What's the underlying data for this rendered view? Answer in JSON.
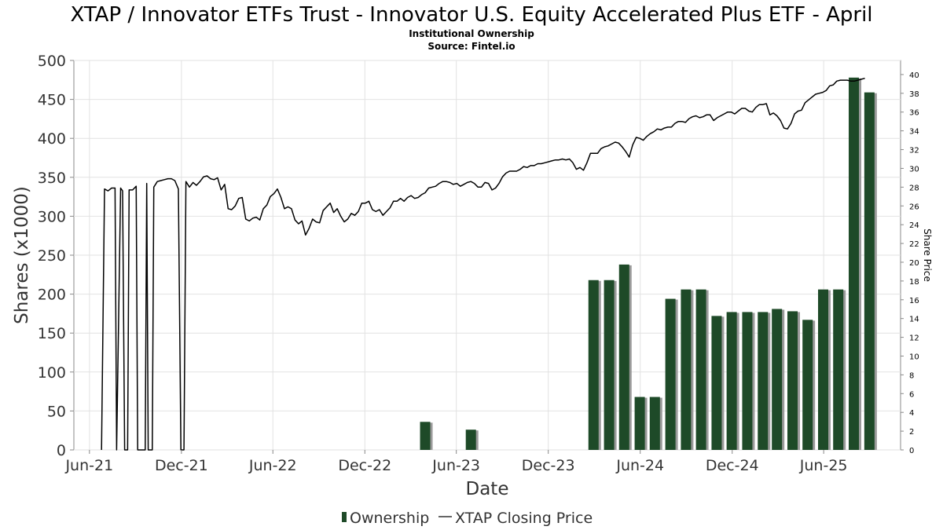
{
  "chart_data": {
    "type": "bar",
    "title": "XTAP / Innovator ETFs Trust - Innovator U.S. Equity Accelerated Plus ETF - April",
    "subtitle": "Institutional Ownership",
    "source": "Source: Fintel.io",
    "xlabel": "Date",
    "ylabel": "Shares (x1000)",
    "y2label": "Share Price",
    "ylim": [
      0,
      500
    ],
    "y2lim": [
      0,
      41.5
    ],
    "yticks": [
      "0",
      "50",
      "100",
      "150",
      "200",
      "250",
      "300",
      "350",
      "400",
      "450",
      "500"
    ],
    "y2ticks": [
      "0",
      "2",
      "4",
      "6",
      "8",
      "10",
      "12",
      "14",
      "16",
      "18",
      "20",
      "22",
      "24",
      "26",
      "28",
      "30",
      "32",
      "34",
      "36",
      "38",
      "40"
    ],
    "xticks": [
      {
        "label": "Jun-21",
        "date": "2021-06-01"
      },
      {
        "label": "Dec-21",
        "date": "2021-12-01"
      },
      {
        "label": "Jun-22",
        "date": "2022-06-01"
      },
      {
        "label": "Dec-22",
        "date": "2022-12-01"
      },
      {
        "label": "Jun-23",
        "date": "2023-06-01"
      },
      {
        "label": "Dec-23",
        "date": "2023-12-01"
      },
      {
        "label": "Jun-24",
        "date": "2024-06-01"
      },
      {
        "label": "Dec-24",
        "date": "2024-12-01"
      },
      {
        "label": "Jun-25",
        "date": "2025-06-01"
      }
    ],
    "xlim": [
      "2021-05-01",
      "2025-11-01"
    ],
    "grid": true,
    "legend_position": "bottom",
    "series": [
      {
        "name": "Ownership",
        "kind": "bar",
        "color": "#1e4a28",
        "points": [
          {
            "date": "2023-03-31",
            "value": 36
          },
          {
            "date": "2023-06-30",
            "value": 26
          },
          {
            "date": "2024-02-29",
            "value": 218
          },
          {
            "date": "2024-03-31",
            "value": 218
          },
          {
            "date": "2024-04-30",
            "value": 238
          },
          {
            "date": "2024-05-31",
            "value": 68
          },
          {
            "date": "2024-06-30",
            "value": 68
          },
          {
            "date": "2024-07-31",
            "value": 194
          },
          {
            "date": "2024-08-31",
            "value": 206
          },
          {
            "date": "2024-09-30",
            "value": 206
          },
          {
            "date": "2024-10-31",
            "value": 172
          },
          {
            "date": "2024-11-30",
            "value": 177
          },
          {
            "date": "2024-12-31",
            "value": 177
          },
          {
            "date": "2025-01-31",
            "value": 177
          },
          {
            "date": "2025-02-28",
            "value": 181
          },
          {
            "date": "2025-03-31",
            "value": 178
          },
          {
            "date": "2025-04-30",
            "value": 167
          },
          {
            "date": "2025-05-31",
            "value": 206
          },
          {
            "date": "2025-06-30",
            "value": 206
          },
          {
            "date": "2025-07-31",
            "value": 478
          },
          {
            "date": "2025-08-31",
            "value": 459
          }
        ]
      },
      {
        "name": "XTAP Closing Price",
        "kind": "line",
        "color": "#000000",
        "points": [
          [
            "2021-06-25",
            0
          ],
          [
            "2021-07-01",
            27.8
          ],
          [
            "2021-07-08",
            27.6
          ],
          [
            "2021-07-15",
            27.9
          ],
          [
            "2021-07-22",
            27.9
          ],
          [
            "2021-07-25",
            0
          ],
          [
            "2021-08-02",
            27.9
          ],
          [
            "2021-08-06",
            27.6
          ],
          [
            "2021-08-10",
            0
          ],
          [
            "2021-08-16",
            0
          ],
          [
            "2021-08-19",
            27.7
          ],
          [
            "2021-08-26",
            27.7
          ],
          [
            "2021-09-02",
            28.1
          ],
          [
            "2021-09-05",
            0
          ],
          [
            "2021-09-20",
            0
          ],
          [
            "2021-09-23",
            28.4
          ],
          [
            "2021-09-26",
            0
          ],
          [
            "2021-10-04",
            0
          ],
          [
            "2021-10-07",
            28.0
          ],
          [
            "2021-10-14",
            28.6
          ],
          [
            "2021-10-21",
            28.7
          ],
          [
            "2021-10-28",
            28.8
          ],
          [
            "2021-11-04",
            28.9
          ],
          [
            "2021-11-11",
            28.9
          ],
          [
            "2021-11-18",
            28.7
          ],
          [
            "2021-11-25",
            27.8
          ],
          [
            "2021-11-30",
            0
          ],
          [
            "2021-12-06",
            0
          ],
          [
            "2021-12-10",
            28.6
          ],
          [
            "2021-12-17",
            28.0
          ],
          [
            "2021-12-24",
            28.5
          ],
          [
            "2021-12-31",
            28.2
          ],
          [
            "2022-01-07",
            28.6
          ],
          [
            "2022-01-14",
            29.1
          ],
          [
            "2022-01-21",
            29.2
          ],
          [
            "2022-01-28",
            28.9
          ],
          [
            "2022-02-04",
            28.8
          ],
          [
            "2022-02-11",
            29.0
          ],
          [
            "2022-02-18",
            27.7
          ],
          [
            "2022-02-25",
            28.3
          ],
          [
            "2022-03-04",
            25.7
          ],
          [
            "2022-03-11",
            25.6
          ],
          [
            "2022-03-18",
            26.0
          ],
          [
            "2022-03-25",
            26.8
          ],
          [
            "2022-04-01",
            26.9
          ],
          [
            "2022-04-08",
            24.6
          ],
          [
            "2022-04-15",
            24.4
          ],
          [
            "2022-04-22",
            24.7
          ],
          [
            "2022-04-29",
            24.8
          ],
          [
            "2022-05-06",
            24.5
          ],
          [
            "2022-05-13",
            25.7
          ],
          [
            "2022-05-20",
            26.1
          ],
          [
            "2022-05-27",
            27.0
          ],
          [
            "2022-06-03",
            27.3
          ],
          [
            "2022-06-10",
            27.8
          ],
          [
            "2022-06-17",
            26.9
          ],
          [
            "2022-06-24",
            25.7
          ],
          [
            "2022-07-01",
            25.9
          ],
          [
            "2022-07-08",
            25.7
          ],
          [
            "2022-07-15",
            24.5
          ],
          [
            "2022-07-22",
            24.1
          ],
          [
            "2022-07-29",
            24.4
          ],
          [
            "2022-08-05",
            22.9
          ],
          [
            "2022-08-12",
            23.6
          ],
          [
            "2022-08-19",
            24.6
          ],
          [
            "2022-08-26",
            24.3
          ],
          [
            "2022-09-02",
            24.2
          ],
          [
            "2022-09-09",
            25.5
          ],
          [
            "2022-09-16",
            25.9
          ],
          [
            "2022-09-23",
            26.3
          ],
          [
            "2022-09-30",
            25.3
          ],
          [
            "2022-10-07",
            25.7
          ],
          [
            "2022-10-14",
            24.9
          ],
          [
            "2022-10-21",
            24.3
          ],
          [
            "2022-10-28",
            24.6
          ],
          [
            "2022-11-04",
            25.2
          ],
          [
            "2022-11-11",
            25.0
          ],
          [
            "2022-11-18",
            25.4
          ],
          [
            "2022-11-25",
            26.3
          ],
          [
            "2022-12-02",
            26.3
          ],
          [
            "2022-12-09",
            26.5
          ],
          [
            "2022-12-16",
            25.6
          ],
          [
            "2022-12-23",
            25.4
          ],
          [
            "2022-12-30",
            25.6
          ],
          [
            "2023-01-06",
            25.0
          ],
          [
            "2023-01-13",
            25.4
          ],
          [
            "2023-01-20",
            25.8
          ],
          [
            "2023-01-27",
            26.5
          ],
          [
            "2023-02-03",
            26.5
          ],
          [
            "2023-02-10",
            26.8
          ],
          [
            "2023-02-17",
            26.5
          ],
          [
            "2023-02-24",
            26.9
          ],
          [
            "2023-03-03",
            27.1
          ],
          [
            "2023-03-10",
            26.8
          ],
          [
            "2023-03-17",
            26.9
          ],
          [
            "2023-03-24",
            27.2
          ],
          [
            "2023-03-31",
            27.4
          ],
          [
            "2023-04-07",
            27.9
          ],
          [
            "2023-04-14",
            28.0
          ],
          [
            "2023-04-21",
            28.1
          ],
          [
            "2023-04-28",
            28.4
          ],
          [
            "2023-05-05",
            28.6
          ],
          [
            "2023-05-12",
            28.6
          ],
          [
            "2023-05-19",
            28.5
          ],
          [
            "2023-05-26",
            28.3
          ],
          [
            "2023-06-02",
            28.4
          ],
          [
            "2023-06-09",
            28.1
          ],
          [
            "2023-06-16",
            28.3
          ],
          [
            "2023-06-23",
            28.5
          ],
          [
            "2023-06-30",
            28.6
          ],
          [
            "2023-07-07",
            28.4
          ],
          [
            "2023-07-14",
            28.0
          ],
          [
            "2023-07-21",
            28.0
          ],
          [
            "2023-07-28",
            28.5
          ],
          [
            "2023-08-04",
            28.4
          ],
          [
            "2023-08-11",
            27.7
          ],
          [
            "2023-08-18",
            27.9
          ],
          [
            "2023-08-25",
            28.4
          ],
          [
            "2023-09-01",
            29.1
          ],
          [
            "2023-09-08",
            29.5
          ],
          [
            "2023-09-15",
            29.7
          ],
          [
            "2023-09-22",
            29.7
          ],
          [
            "2023-09-29",
            29.7
          ],
          [
            "2023-10-06",
            29.9
          ],
          [
            "2023-10-13",
            30.2
          ],
          [
            "2023-10-20",
            30.1
          ],
          [
            "2023-10-27",
            30.3
          ],
          [
            "2023-11-03",
            30.3
          ],
          [
            "2023-11-10",
            30.5
          ],
          [
            "2023-11-17",
            30.5
          ],
          [
            "2023-11-24",
            30.6
          ],
          [
            "2023-12-01",
            30.7
          ],
          [
            "2023-12-08",
            30.8
          ],
          [
            "2023-12-15",
            30.9
          ],
          [
            "2023-12-22",
            30.9
          ],
          [
            "2023-12-29",
            31.0
          ],
          [
            "2024-01-05",
            30.9
          ],
          [
            "2024-01-12",
            31.0
          ],
          [
            "2024-01-19",
            30.6
          ],
          [
            "2024-01-26",
            29.9
          ],
          [
            "2024-02-02",
            30.1
          ],
          [
            "2024-02-09",
            29.8
          ],
          [
            "2024-02-16",
            30.6
          ],
          [
            "2024-02-23",
            31.6
          ],
          [
            "2024-03-01",
            31.6
          ],
          [
            "2024-03-08",
            31.6
          ],
          [
            "2024-03-15",
            32.1
          ],
          [
            "2024-03-22",
            32.3
          ],
          [
            "2024-03-29",
            32.4
          ],
          [
            "2024-04-05",
            32.6
          ],
          [
            "2024-04-12",
            32.8
          ],
          [
            "2024-04-19",
            32.7
          ],
          [
            "2024-04-26",
            32.3
          ],
          [
            "2024-05-03",
            31.8
          ],
          [
            "2024-05-10",
            31.2
          ],
          [
            "2024-05-17",
            32.5
          ],
          [
            "2024-05-24",
            33.3
          ],
          [
            "2024-05-31",
            33.2
          ],
          [
            "2024-06-07",
            33.0
          ],
          [
            "2024-06-14",
            33.4
          ],
          [
            "2024-06-21",
            33.7
          ],
          [
            "2024-06-28",
            33.9
          ],
          [
            "2024-07-05",
            34.2
          ],
          [
            "2024-07-12",
            34.1
          ],
          [
            "2024-07-19",
            34.3
          ],
          [
            "2024-07-26",
            34.4
          ],
          [
            "2024-08-02",
            34.4
          ],
          [
            "2024-08-09",
            34.8
          ],
          [
            "2024-08-16",
            35.0
          ],
          [
            "2024-08-23",
            35.0
          ],
          [
            "2024-08-30",
            34.9
          ],
          [
            "2024-09-06",
            35.3
          ],
          [
            "2024-09-13",
            35.5
          ],
          [
            "2024-09-20",
            35.6
          ],
          [
            "2024-09-27",
            35.4
          ],
          [
            "2024-10-04",
            35.5
          ],
          [
            "2024-10-11",
            35.7
          ],
          [
            "2024-10-18",
            35.7
          ],
          [
            "2024-10-25",
            35.1
          ],
          [
            "2024-11-01",
            35.4
          ],
          [
            "2024-11-08",
            35.6
          ],
          [
            "2024-11-15",
            35.8
          ],
          [
            "2024-11-22",
            36.0
          ],
          [
            "2024-11-29",
            36.0
          ],
          [
            "2024-12-06",
            35.8
          ],
          [
            "2024-12-13",
            36.1
          ],
          [
            "2024-12-20",
            36.4
          ],
          [
            "2024-12-27",
            36.4
          ],
          [
            "2025-01-03",
            36.1
          ],
          [
            "2025-01-10",
            36.0
          ],
          [
            "2025-01-17",
            36.5
          ],
          [
            "2025-01-24",
            36.8
          ],
          [
            "2025-01-31",
            36.8
          ],
          [
            "2025-02-07",
            36.9
          ],
          [
            "2025-02-14",
            35.7
          ],
          [
            "2025-02-21",
            35.9
          ],
          [
            "2025-02-28",
            35.6
          ],
          [
            "2025-03-07",
            35.1
          ],
          [
            "2025-03-14",
            34.3
          ],
          [
            "2025-03-21",
            34.2
          ],
          [
            "2025-03-28",
            34.8
          ],
          [
            "2025-04-04",
            35.8
          ],
          [
            "2025-04-11",
            36.1
          ],
          [
            "2025-04-18",
            36.2
          ],
          [
            "2025-04-25",
            37.0
          ],
          [
            "2025-05-02",
            37.3
          ],
          [
            "2025-05-09",
            37.6
          ],
          [
            "2025-05-16",
            37.9
          ],
          [
            "2025-05-23",
            38.0
          ],
          [
            "2025-05-30",
            38.1
          ],
          [
            "2025-06-06",
            38.3
          ],
          [
            "2025-06-13",
            38.8
          ],
          [
            "2025-06-20",
            38.9
          ],
          [
            "2025-06-27",
            39.3
          ],
          [
            "2025-07-04",
            39.4
          ],
          [
            "2025-07-11",
            39.4
          ],
          [
            "2025-07-18",
            39.4
          ],
          [
            "2025-07-25",
            39.3
          ],
          [
            "2025-08-01",
            39.3
          ],
          [
            "2025-08-08",
            39.4
          ],
          [
            "2025-08-15",
            39.5
          ],
          [
            "2025-08-22",
            39.6
          ]
        ]
      }
    ]
  },
  "legend": {
    "ownership_label": "Ownership",
    "price_label": "XTAP Closing Price"
  }
}
